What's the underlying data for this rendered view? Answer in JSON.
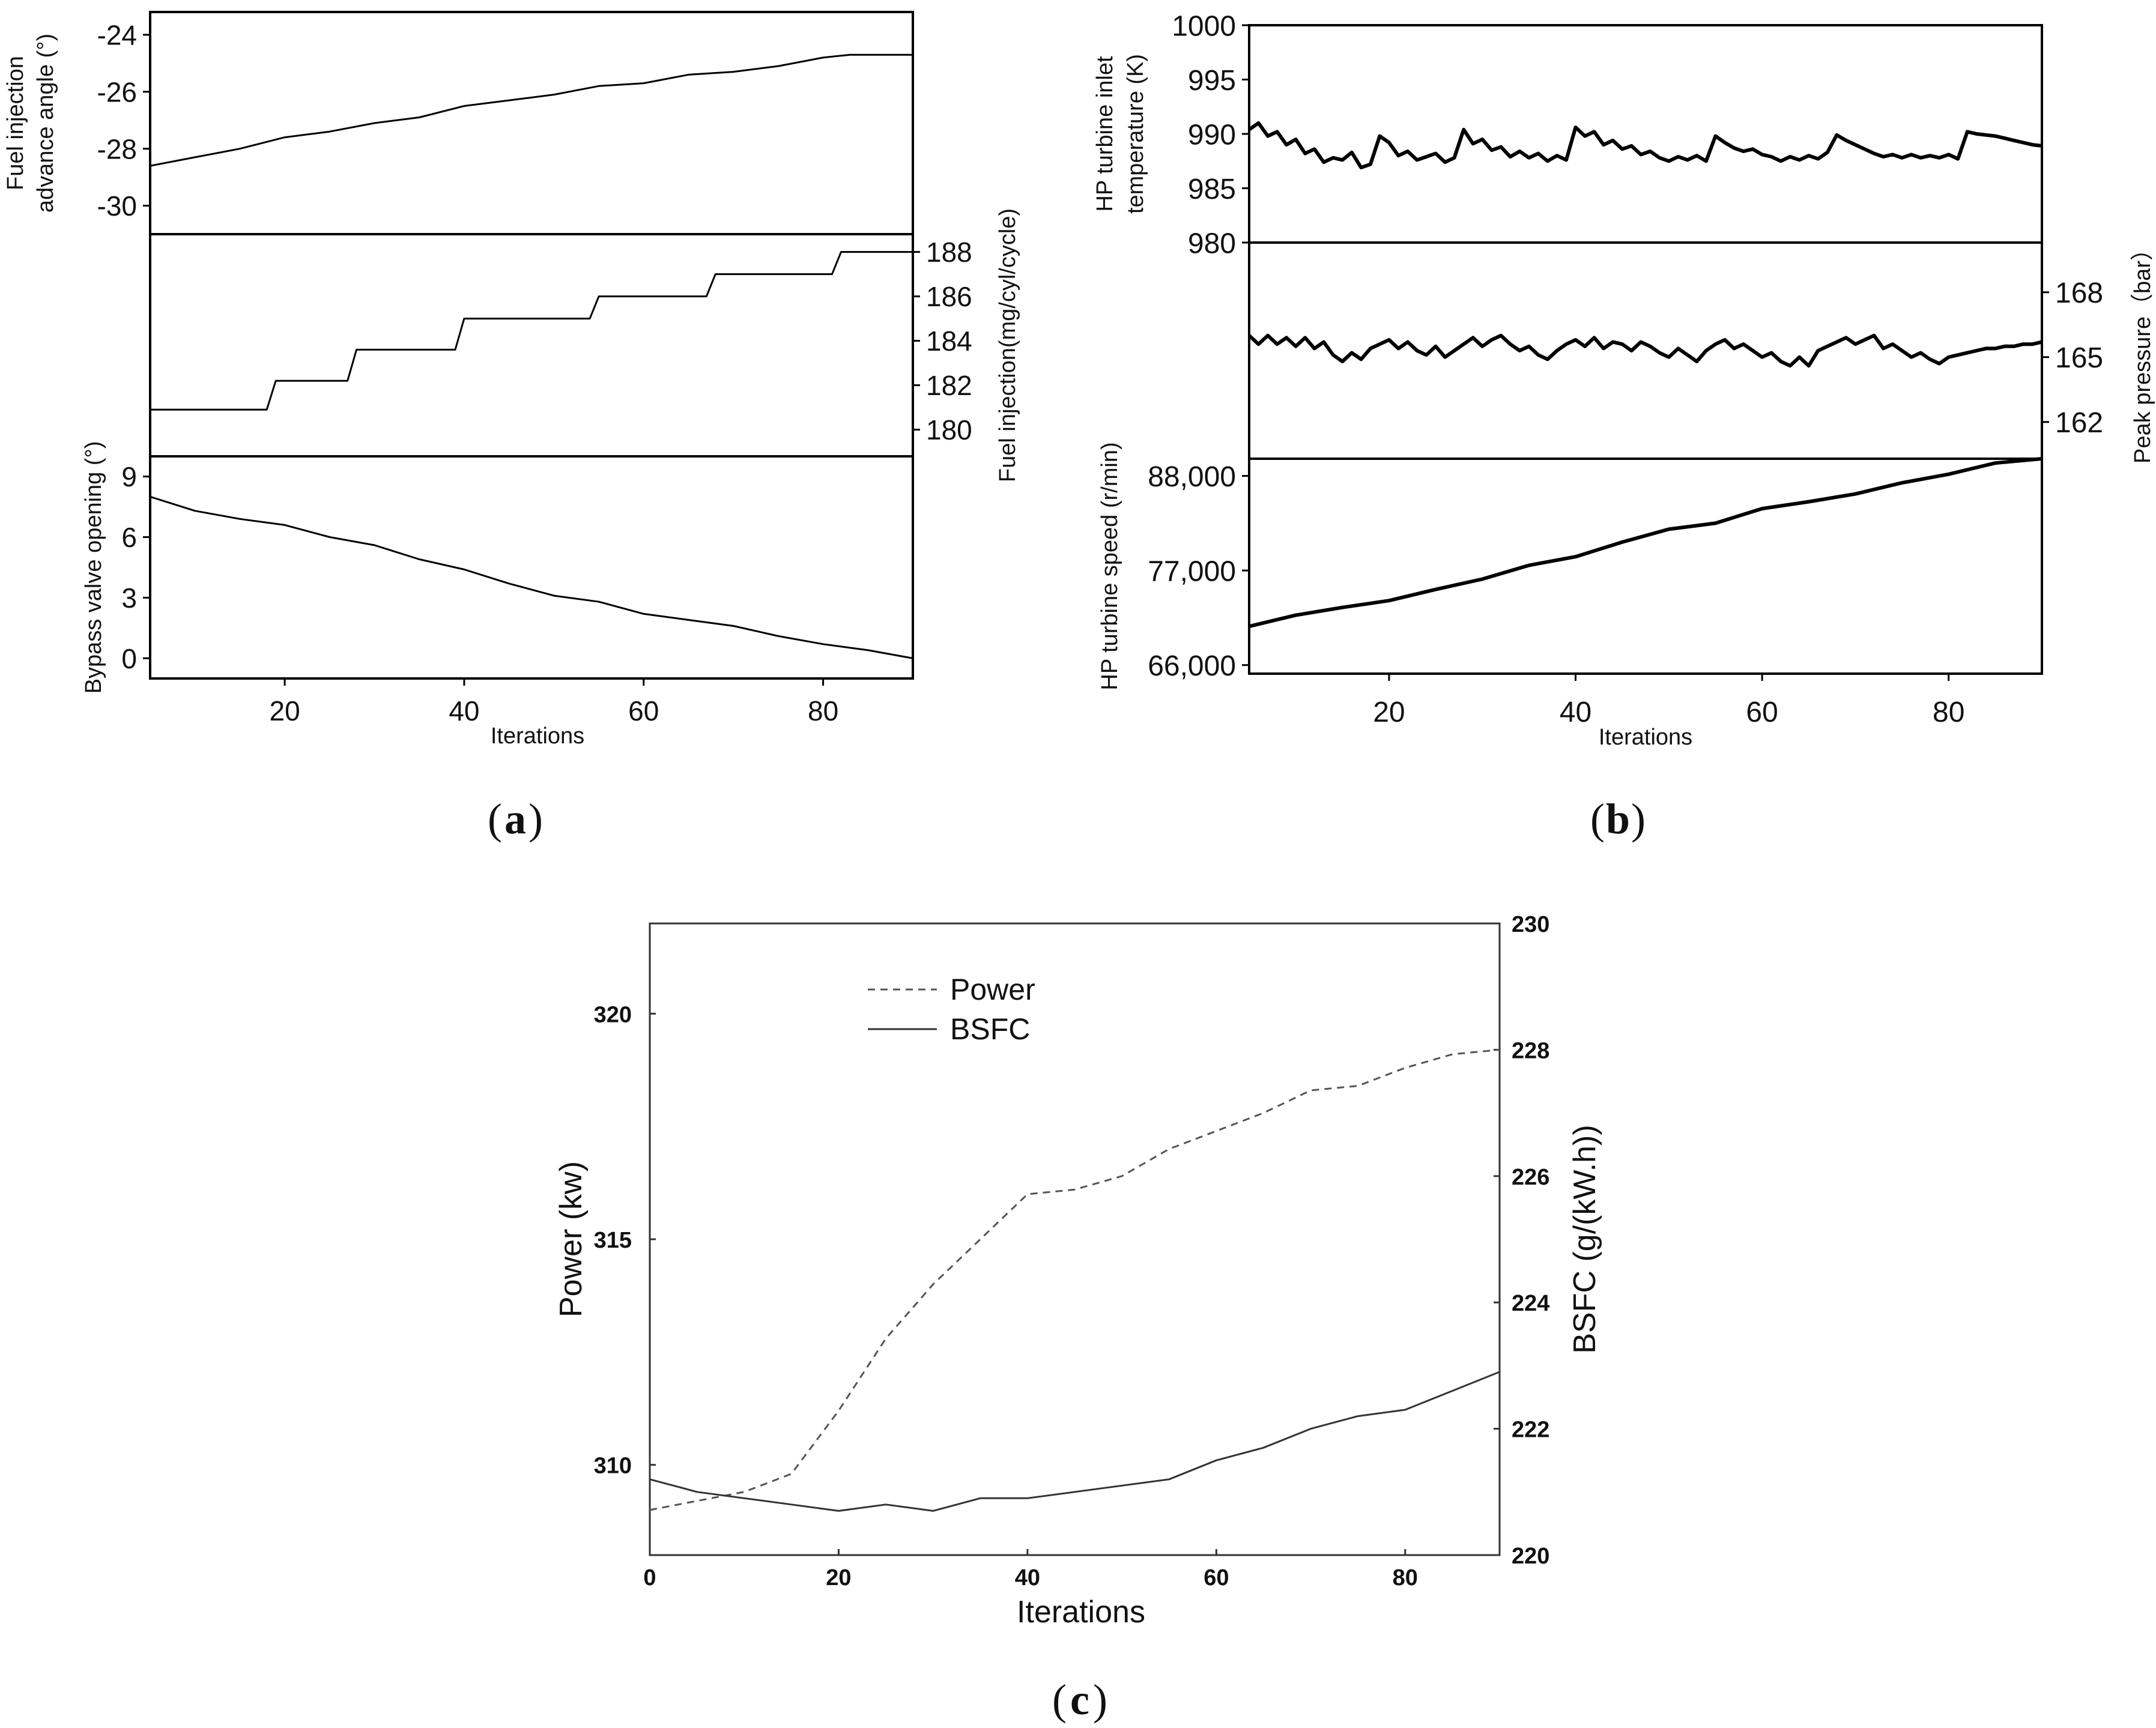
{
  "chart_data": [
    {
      "type": "line",
      "id": "a",
      "caption_letter": "a",
      "xlabel": "Iterations",
      "xticks": [
        "20",
        "40",
        "60",
        "80"
      ],
      "x_range": [
        5,
        90
      ],
      "subplots": [
        {
          "name": "fuel-injection-advance-angle",
          "ylabel_lines": [
            "Fuel injection",
            "advance angle (°)"
          ],
          "axis_side": "left",
          "yticks": [
            "-24",
            "-26",
            "-28",
            "-30"
          ],
          "ylim": [
            -31.0,
            -23.2
          ],
          "series": [
            {
              "name": "Fuel injection advance angle",
              "x": [
                5,
                10,
                15,
                20,
                25,
                30,
                35,
                40,
                45,
                50,
                55,
                60,
                65,
                70,
                75,
                80,
                83,
                90
              ],
              "y": [
                -28.6,
                -28.3,
                -28.0,
                -27.6,
                -27.4,
                -27.1,
                -26.9,
                -26.5,
                -26.3,
                -26.1,
                -25.8,
                -25.7,
                -25.4,
                -25.3,
                -25.1,
                -24.8,
                -24.7,
                -24.7
              ]
            }
          ]
        },
        {
          "name": "fuel-injection",
          "ylabel_lines": [
            "Fuel injection(mg/cyl/cycle)"
          ],
          "axis_side": "right",
          "yticks": [
            "188",
            "186",
            "184",
            "182",
            "180"
          ],
          "ylim": [
            178.8,
            188.8
          ],
          "series": [
            {
              "name": "Fuel injection",
              "x": [
                5,
                18,
                19,
                27,
                28,
                39,
                40,
                54,
                55,
                67,
                68,
                81,
                82,
                90
              ],
              "y": [
                180.9,
                180.9,
                182.2,
                182.2,
                183.6,
                183.6,
                185.0,
                185.0,
                186.0,
                186.0,
                187.0,
                187.0,
                188.0,
                188.0
              ]
            }
          ]
        },
        {
          "name": "bypass-valve-opening",
          "ylabel_lines": [
            "Bypass valve opening (°)"
          ],
          "axis_side": "left",
          "yticks": [
            "9",
            "6",
            "3",
            "0"
          ],
          "ylim": [
            -1.0,
            10.0
          ],
          "series": [
            {
              "name": "Bypass valve opening",
              "x": [
                5,
                10,
                15,
                20,
                25,
                30,
                35,
                40,
                45,
                50,
                55,
                60,
                65,
                70,
                75,
                80,
                85,
                90
              ],
              "y": [
                8.0,
                7.3,
                6.9,
                6.6,
                6.0,
                5.6,
                4.9,
                4.4,
                3.7,
                3.1,
                2.8,
                2.2,
                1.9,
                1.6,
                1.1,
                0.7,
                0.4,
                0.0
              ]
            }
          ]
        }
      ]
    },
    {
      "type": "line",
      "id": "b",
      "caption_letter": "b",
      "xlabel": "Iterations",
      "xticks": [
        "20",
        "40",
        "60",
        "80"
      ],
      "x_range": [
        5,
        90
      ],
      "subplots": [
        {
          "name": "hp-turbine-inlet-temperature",
          "ylabel_lines": [
            "HP turbine inlet",
            "temperature (K)"
          ],
          "axis_side": "left",
          "yticks": [
            "1000",
            "995",
            "990",
            "985",
            "980"
          ],
          "ylim": [
            980,
            1000
          ],
          "series": [
            {
              "name": "HP turbine inlet temperature",
              "x": [
                5,
                6,
                7,
                8,
                9,
                10,
                11,
                12,
                13,
                14,
                15,
                16,
                17,
                18,
                19,
                20,
                21,
                22,
                23,
                24,
                25,
                26,
                27,
                28,
                29,
                30,
                31,
                32,
                33,
                34,
                35,
                36,
                37,
                38,
                39,
                40,
                41,
                42,
                43,
                44,
                45,
                46,
                47,
                48,
                49,
                50,
                51,
                52,
                53,
                54,
                55,
                56,
                57,
                58,
                59,
                60,
                61,
                62,
                63,
                64,
                65,
                66,
                67,
                68,
                69,
                70,
                71,
                72,
                73,
                74,
                75,
                76,
                77,
                78,
                79,
                80,
                81,
                82,
                83,
                84,
                85,
                86,
                87,
                88,
                89,
                90
              ],
              "y": [
                990.4,
                991.0,
                989.8,
                990.2,
                989.0,
                989.5,
                988.2,
                988.6,
                987.4,
                987.8,
                987.6,
                988.3,
                986.9,
                987.2,
                989.8,
                989.2,
                988.0,
                988.4,
                987.6,
                987.9,
                988.2,
                987.4,
                987.8,
                990.4,
                989.1,
                989.5,
                988.5,
                988.8,
                987.9,
                988.4,
                987.8,
                988.2,
                987.5,
                988.0,
                987.6,
                990.6,
                989.8,
                990.2,
                989.0,
                989.4,
                988.6,
                988.9,
                988.1,
                988.4,
                987.8,
                987.5,
                987.9,
                987.6,
                988.0,
                987.5,
                989.8,
                989.2,
                988.7,
                988.4,
                988.6,
                988.1,
                987.9,
                987.5,
                987.9,
                987.6,
                988.0,
                987.7,
                988.3,
                989.9,
                989.4,
                989.0,
                988.6,
                988.2,
                987.9,
                988.1,
                987.8,
                988.1,
                987.8,
                988.0,
                987.8,
                988.1,
                987.7,
                990.2,
                990.0,
                989.9,
                989.8,
                989.6,
                989.4,
                989.2,
                989.0,
                988.9
              ]
            }
          ]
        },
        {
          "name": "peak-pressure",
          "ylabel_lines": [
            "Peak pressure（bar）"
          ],
          "axis_side": "right",
          "yticks": [
            "168",
            "165",
            "162"
          ],
          "ylim": [
            160.3,
            170.3
          ],
          "series": [
            {
              "name": "Peak pressure",
              "x": [
                5,
                6,
                7,
                8,
                9,
                10,
                11,
                12,
                13,
                14,
                15,
                16,
                17,
                18,
                19,
                20,
                21,
                22,
                23,
                24,
                25,
                26,
                27,
                28,
                29,
                30,
                31,
                32,
                33,
                34,
                35,
                36,
                37,
                38,
                39,
                40,
                41,
                42,
                43,
                44,
                45,
                46,
                47,
                48,
                49,
                50,
                51,
                52,
                53,
                54,
                55,
                56,
                57,
                58,
                59,
                60,
                61,
                62,
                63,
                64,
                65,
                66,
                67,
                68,
                69,
                70,
                71,
                72,
                73,
                74,
                75,
                76,
                77,
                78,
                79,
                80,
                81,
                82,
                83,
                84,
                85,
                86,
                87,
                88,
                89,
                90
              ],
              "y": [
                166.0,
                165.6,
                166.0,
                165.6,
                165.9,
                165.5,
                165.9,
                165.4,
                165.7,
                165.1,
                164.8,
                165.2,
                164.9,
                165.4,
                165.6,
                165.8,
                165.4,
                165.7,
                165.3,
                165.1,
                165.5,
                165.0,
                165.3,
                165.6,
                165.9,
                165.5,
                165.8,
                166.0,
                165.6,
                165.3,
                165.5,
                165.1,
                164.9,
                165.3,
                165.6,
                165.8,
                165.5,
                165.9,
                165.4,
                165.7,
                165.6,
                165.3,
                165.7,
                165.5,
                165.2,
                165.0,
                165.4,
                165.1,
                164.8,
                165.3,
                165.6,
                165.8,
                165.4,
                165.6,
                165.3,
                165.0,
                165.2,
                164.8,
                164.6,
                165.0,
                164.6,
                165.3,
                165.5,
                165.7,
                165.9,
                165.6,
                165.8,
                166.0,
                165.4,
                165.6,
                165.3,
                165.0,
                165.2,
                164.9,
                164.7,
                165.0,
                165.1,
                165.2,
                165.3,
                165.4,
                165.4,
                165.5,
                165.5,
                165.6,
                165.6,
                165.7
              ]
            }
          ]
        },
        {
          "name": "hp-turbine-speed",
          "ylabel_lines": [
            "HP turbine speed (r/min)"
          ],
          "axis_side": "left",
          "yticks": [
            "88,000",
            "77,000",
            "66,000"
          ],
          "ylim": [
            65000,
            90000
          ],
          "series": [
            {
              "name": "HP turbine speed",
              "x": [
                5,
                10,
                15,
                20,
                25,
                30,
                35,
                40,
                45,
                50,
                55,
                60,
                65,
                70,
                75,
                80,
                85,
                90
              ],
              "y": [
                70500,
                71800,
                72700,
                73500,
                74800,
                76000,
                77600,
                78600,
                80300,
                81800,
                82500,
                84200,
                85000,
                85900,
                87200,
                88200,
                89500,
                90000
              ]
            }
          ]
        }
      ]
    },
    {
      "type": "line",
      "id": "c",
      "caption_letter": "c",
      "xlabel": "Iterations",
      "xticks": [
        "0",
        "20",
        "40",
        "60",
        "80"
      ],
      "xlim": [
        0,
        90
      ],
      "ylabel_left": "Power (kw)",
      "ylabel_right": "BSFC (g/(kW.h))",
      "yticks_left": [
        "320",
        "315",
        "310"
      ],
      "ylim_left": [
        308.0,
        322.0
      ],
      "yticks_right": [
        "230",
        "228",
        "226",
        "224",
        "222",
        "220"
      ],
      "ylim_right": [
        220,
        230
      ],
      "legend_position": "top-left",
      "series": [
        {
          "name": "Power",
          "style": "dashed",
          "axis": "left",
          "x": [
            0,
            5,
            10,
            15,
            20,
            25,
            30,
            35,
            40,
            45,
            50,
            55,
            60,
            65,
            70,
            75,
            80,
            85,
            90
          ],
          "y": [
            309.0,
            309.2,
            309.4,
            309.8,
            311.2,
            312.8,
            314.0,
            315.0,
            316.0,
            316.1,
            316.4,
            317.0,
            317.4,
            317.8,
            318.3,
            318.4,
            318.8,
            319.1,
            319.2
          ]
        },
        {
          "name": "BSFC",
          "style": "solid",
          "axis": "right",
          "x": [
            0,
            5,
            10,
            15,
            20,
            25,
            30,
            35,
            40,
            45,
            50,
            55,
            60,
            65,
            70,
            75,
            80,
            85,
            90
          ],
          "y": [
            221.2,
            221.0,
            220.9,
            220.8,
            220.7,
            220.8,
            220.7,
            220.9,
            220.9,
            221.0,
            221.1,
            221.2,
            221.5,
            221.7,
            222.0,
            222.2,
            222.3,
            222.6,
            222.9
          ]
        }
      ]
    }
  ]
}
